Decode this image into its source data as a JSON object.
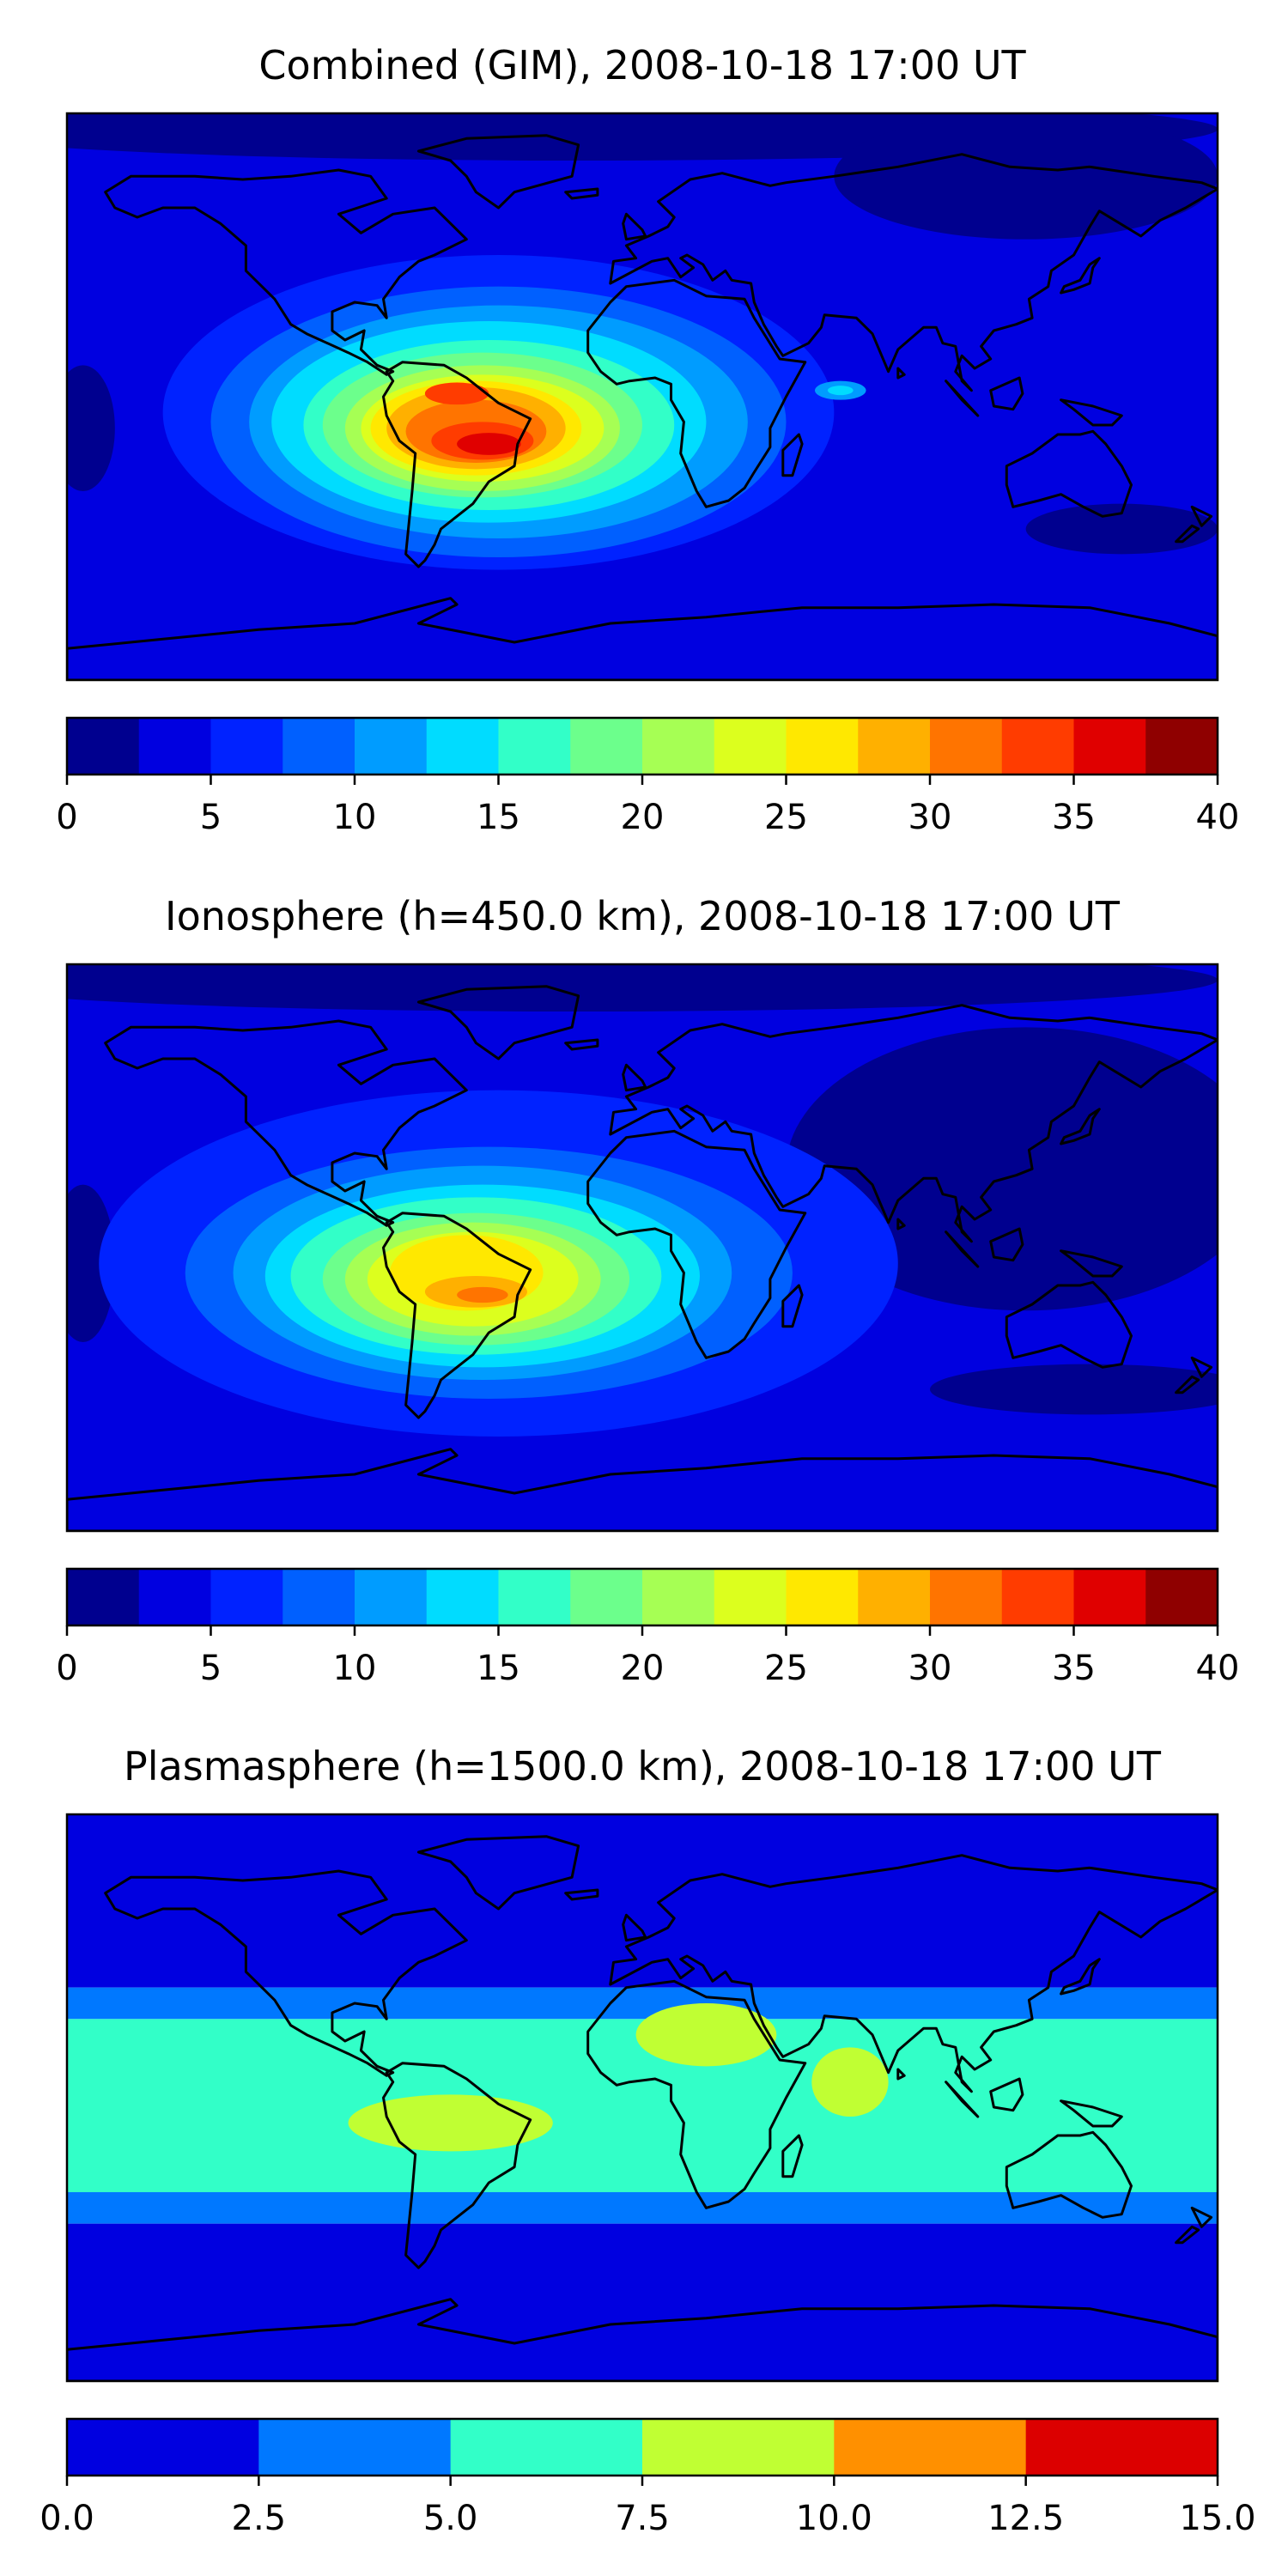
{
  "chart_data": [
    {
      "type": "heatmap",
      "map_type": "filled contour world map",
      "title": "Combined (GIM), 2008-10-18 17:00 UT",
      "colorbar": {
        "min": 0,
        "max": 40,
        "step": 2.5,
        "ticks": [
          "0",
          "5",
          "10",
          "15",
          "20",
          "25",
          "30",
          "35",
          "40"
        ],
        "colors": [
          "#00008f",
          "#0000e0",
          "#0022ff",
          "#0060ff",
          "#009cff",
          "#00dcff",
          "#32ffc8",
          "#6cff8c",
          "#a6ff54",
          "#dcff1e",
          "#ffe800",
          "#ffb000",
          "#ff7400",
          "#ff3c00",
          "#e00000",
          "#8f0000"
        ]
      },
      "features": [
        {
          "level": 35,
          "label": "peak over central South America",
          "lon": -50,
          "lat": -15
        },
        {
          "level": 32.5,
          "label": "secondary maximum over northern South America",
          "lon": -55,
          "lat": 0
        },
        {
          "level": 10,
          "label": "Indian Ocean enhancement",
          "lon": 60,
          "lat": 0
        },
        {
          "level": 2.5,
          "label": "minimum over southern Pacific / Australia",
          "lon": 150,
          "lat": -40
        }
      ]
    },
    {
      "type": "heatmap",
      "map_type": "filled contour world map",
      "title": "Ionosphere  (h=450.0 km), 2008-10-18 17:00 UT",
      "colorbar": {
        "min": 0,
        "max": 40,
        "step": 2.5,
        "ticks": [
          "0",
          "5",
          "10",
          "15",
          "20",
          "25",
          "30",
          "35",
          "40"
        ],
        "colors": [
          "#00008f",
          "#0000e0",
          "#0022ff",
          "#0060ff",
          "#009cff",
          "#00dcff",
          "#32ffc8",
          "#6cff8c",
          "#a6ff54",
          "#dcff1e",
          "#ffe800",
          "#ffb000",
          "#ff7400",
          "#ff3c00",
          "#e00000",
          "#8f0000"
        ]
      },
      "features": [
        {
          "level": 30,
          "label": "peak over southern Brazil",
          "lon": -50,
          "lat": -15
        },
        {
          "level": 25,
          "label": "yellow region over South America",
          "lon": -55,
          "lat": -5
        },
        {
          "level": 2.5,
          "label": "night-side minimum over Asia / Pacific",
          "lon": 120,
          "lat": 20
        }
      ]
    },
    {
      "type": "heatmap",
      "map_type": "filled contour world map",
      "title": "Plasmasphere (h=1500.0 km), 2008-10-18 17:00 UT",
      "colorbar": {
        "min": 0.0,
        "max": 15.0,
        "step": 2.5,
        "ticks": [
          "0.0",
          "2.5",
          "5.0",
          "7.5",
          "10.0",
          "12.5",
          "15.0"
        ],
        "colors": [
          "#0000e0",
          "#0078ff",
          "#32ffc8",
          "#c0ff33",
          "#ff9000",
          "#dc0000"
        ]
      },
      "features": [
        {
          "level": 7.5,
          "label": "South Atlantic maximum",
          "lon": -60,
          "lat": -8
        },
        {
          "level": 7.5,
          "label": "North Africa maximum",
          "lon": 20,
          "lat": 20
        },
        {
          "level": 7.5,
          "label": "Arabian Sea maximum",
          "lon": 65,
          "lat": 5
        },
        {
          "level": 5.0,
          "label": "equatorial band",
          "lon": 0,
          "lat": 0
        }
      ]
    }
  ]
}
